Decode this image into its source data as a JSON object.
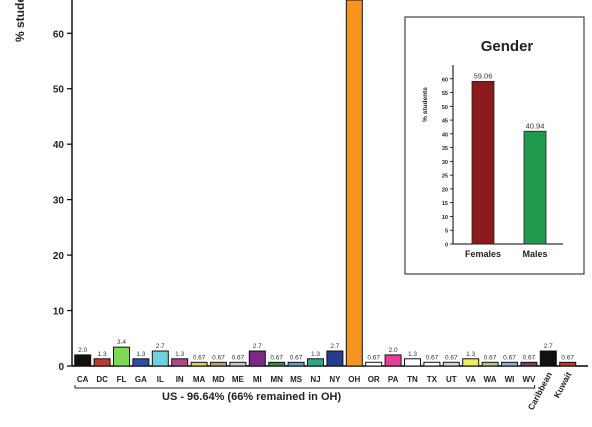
{
  "chart_data": [
    {
      "type": "bar",
      "ylabel": "% students",
      "ylim": [
        0,
        66
      ],
      "yticks": [
        0,
        10,
        20,
        30,
        40,
        50,
        60
      ],
      "categories": [
        "CA",
        "DC",
        "FL",
        "GA",
        "IL",
        "IN",
        "MA",
        "MD",
        "ME",
        "MI",
        "MN",
        "MS",
        "NJ",
        "NY",
        "OH",
        "OR",
        "PA",
        "TN",
        "TX",
        "UT",
        "VA",
        "WA",
        "WI",
        "WV",
        "Caribbean",
        "Kuwait"
      ],
      "values": [
        2.0,
        1.3,
        3.4,
        1.3,
        2.7,
        1.3,
        0.67,
        0.67,
        0.67,
        2.7,
        0.67,
        0.67,
        1.3,
        2.7,
        66,
        0.67,
        2.0,
        1.3,
        0.67,
        0.67,
        1.3,
        0.67,
        0.67,
        0.67,
        2.7,
        0.67
      ],
      "data_labels": [
        "2.0",
        "1.3",
        "3.4",
        "1.3",
        "2.7",
        "1.3",
        "0.67",
        "0.67",
        "0.67",
        "2.7",
        "0.67",
        "0.67",
        "1.3",
        "2.7",
        "",
        "0.67",
        "2.0",
        "1.3",
        "0.67",
        "0.67",
        "1.3",
        "0.67",
        "0.67",
        "0.67",
        "2.7",
        "0.67"
      ],
      "colors": [
        "#111111",
        "#c0392b",
        "#7ed957",
        "#2d4ea8",
        "#6fd0e0",
        "#b5468e",
        "#e0d05a",
        "#b9a36b",
        "#c8c8c8",
        "#7a2a86",
        "#2f8f4a",
        "#5aa0c8",
        "#2aa88c",
        "#283c8f",
        "#f7941d",
        "#ffffff",
        "#e83e9a",
        "#ffffff",
        "#ffffff",
        "#d8d8d8",
        "#f2ec5c",
        "#b0d080",
        "#8fb0d8",
        "#7a3a6a",
        "#111111",
        "#c0392b"
      ],
      "group_label": "US - 96.64%     (66% remained in OH)"
    },
    {
      "type": "bar",
      "title": "Gender",
      "ylabel": "% students",
      "ylim": [
        0,
        65
      ],
      "yticks": [
        0,
        5,
        10,
        15,
        20,
        25,
        30,
        35,
        40,
        45,
        50,
        55,
        60
      ],
      "categories": [
        "Females",
        "Males"
      ],
      "values": [
        59.06,
        40.94
      ],
      "data_labels": [
        "59.06",
        "40.94"
      ],
      "colors": [
        "#8b1a1a",
        "#1f9a4c"
      ]
    }
  ]
}
